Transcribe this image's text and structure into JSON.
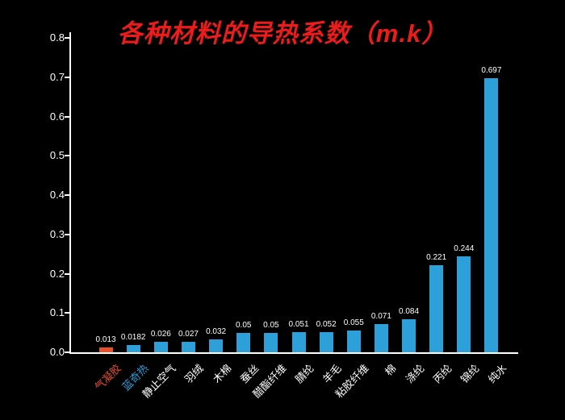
{
  "chart_data": {
    "type": "bar",
    "title": "各种材料的导热系数（m.k）",
    "categories": [
      "气凝胶",
      "蓝奇热",
      "静止空气",
      "羽绒",
      "木棉",
      "蚕丝",
      "醋酯纤维",
      "腈纶",
      "羊毛",
      "粘胶纤维",
      "棉",
      "涤纶",
      "丙纶",
      "锦纶",
      "纯水"
    ],
    "values": [
      0.013,
      0.0182,
      0.026,
      0.027,
      0.032,
      0.05,
      0.05,
      0.051,
      0.052,
      0.055,
      0.071,
      0.084,
      0.221,
      0.244,
      0.697
    ],
    "value_labels": [
      "0.013",
      "0.0182",
      "0.026",
      "0.027",
      "0.032",
      "0.05",
      "0.05",
      "0.051",
      "0.052",
      "0.055",
      "0.071",
      "0.084",
      "0.221",
      "0.244",
      "0.697"
    ],
    "xlabel": "",
    "ylabel": "",
    "ylim": [
      0,
      0.8
    ],
    "yticks": [
      "0.0",
      "0.1",
      "0.2",
      "0.3",
      "0.4",
      "0.5",
      "0.6",
      "0.7",
      "0.8"
    ],
    "grid": false,
    "legend": "none"
  },
  "styles": {
    "background": "#000000",
    "title_color": "#ee1b1b",
    "bar_color": "#2da0da",
    "first_bar_color": "#e8502a",
    "highlight_index": 0,
    "axis_color": "#ffffff",
    "value_label_color": "#ffffff",
    "ytick_label_color": "#ffffff",
    "xlabel_colors": [
      "#e8502a",
      "#2da0da"
    ],
    "xlabel_default": "#ffffff"
  }
}
